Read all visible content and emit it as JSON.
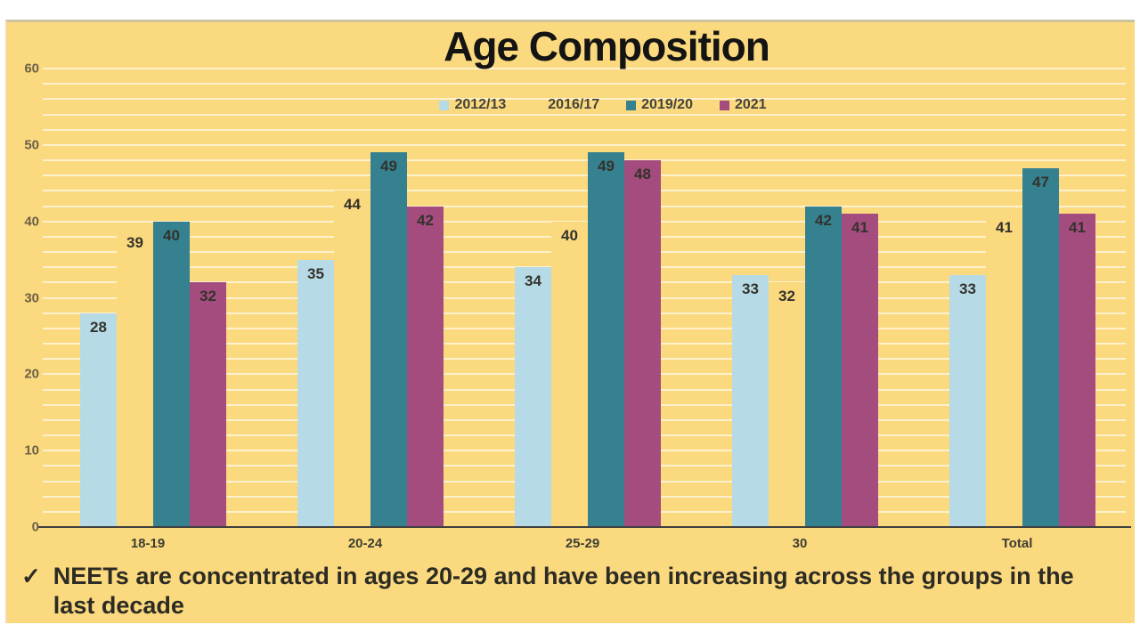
{
  "title": "Age Composition",
  "footer": {
    "check": "✓",
    "text": "NEETs are concentrated in ages 20-29 and have been increasing across the groups in the last decade"
  },
  "colors": {
    "panel_background": "#fbd97e",
    "gridline": "rgba(255,255,255,0.62)",
    "axis_line": "#3f3f3f",
    "series_2012_13": "#b7dbe6",
    "series_2016_17": "#fbd97e",
    "series_2019_20": "#35818f",
    "series_2021": "#a54c7e"
  },
  "chart_data": {
    "type": "bar",
    "title": "Age Composition",
    "categories": [
      "18-19",
      "20-24",
      "25-29",
      "30",
      "Total"
    ],
    "series": [
      {
        "name": "2012/13",
        "color": "#b7dbe6",
        "invisible": false,
        "values": [
          28,
          35,
          34,
          33,
          33
        ]
      },
      {
        "name": "2016/17",
        "color": "#fbd97e",
        "invisible": true,
        "values": [
          39,
          44,
          40,
          32,
          41
        ]
      },
      {
        "name": "2019/20",
        "color": "#35818f",
        "invisible": false,
        "values": [
          40,
          49,
          49,
          42,
          47
        ]
      },
      {
        "name": "2021",
        "color": "#a54c7e",
        "invisible": false,
        "values": [
          32,
          42,
          48,
          41,
          41
        ]
      }
    ],
    "ylim": [
      0,
      60
    ],
    "yticks": [
      0,
      10,
      20,
      30,
      40,
      50,
      60
    ],
    "grid_step": 2,
    "grid": "on",
    "legend_position": "top-center",
    "data_labels": "inside-top"
  }
}
